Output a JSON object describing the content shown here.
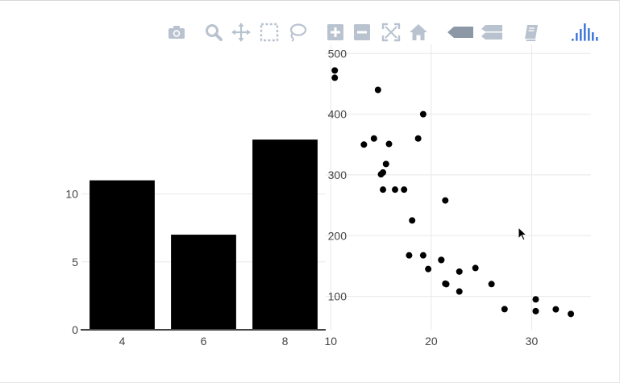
{
  "modebar": {
    "buttons": [
      {
        "icon": "camera-icon",
        "title": "Download plot as a png"
      },
      {
        "icon": "zoom-icon",
        "title": "Zoom"
      },
      {
        "icon": "pan-icon",
        "title": "Pan"
      },
      {
        "icon": "box-select-icon",
        "title": "Box Select"
      },
      {
        "icon": "lasso-select-icon",
        "title": "Lasso Select"
      },
      {
        "icon": "zoom-in-icon",
        "title": "Zoom in"
      },
      {
        "icon": "zoom-out-icon",
        "title": "Zoom out"
      },
      {
        "icon": "autoscale-icon",
        "title": "Autoscale"
      },
      {
        "icon": "home-icon",
        "title": "Reset axes"
      },
      {
        "icon": "spike-lines-icon",
        "title": "Toggle Spike Lines"
      },
      {
        "icon": "compare-hover-icon",
        "title": "Compare data on hover"
      },
      {
        "icon": "edit-chart-icon",
        "title": "Edit in Chart Studio"
      },
      {
        "icon": "plotly-logo-icon",
        "title": "Produced with Plotly"
      }
    ],
    "icon_color": "#b9c3d0",
    "logo_color": "#447adb"
  },
  "chart_data": [
    {
      "type": "bar",
      "categories": [
        "4",
        "6",
        "8"
      ],
      "values": [
        11,
        7,
        14
      ],
      "xlabel": "",
      "ylabel": "",
      "ylim": [
        0,
        14
      ],
      "yticks": [
        0,
        5,
        10
      ],
      "color": "#000000",
      "grid": true
    },
    {
      "type": "scatter",
      "xlabel": "",
      "ylabel": "",
      "xlim": [
        9.5,
        35.9
      ],
      "ylim": [
        45,
        515
      ],
      "xticks": [
        10,
        20,
        30
      ],
      "yticks": [
        100,
        200,
        300,
        400,
        500
      ],
      "color": "#000000",
      "grid": true,
      "x": [
        21,
        21,
        22.8,
        21.4,
        18.7,
        18.1,
        14.3,
        24.4,
        22.8,
        19.2,
        17.8,
        16.4,
        17.3,
        15.2,
        10.4,
        10.4,
        14.7,
        32.4,
        30.4,
        33.9,
        21.5,
        15.5,
        15.2,
        13.3,
        19.2,
        27.3,
        26,
        30.4,
        15.8,
        19.7,
        15,
        21.4
      ],
      "y": [
        160,
        160,
        108,
        258,
        360,
        225,
        360,
        146.7,
        140.8,
        167.6,
        167.6,
        275.8,
        275.8,
        275.8,
        472,
        460,
        440,
        78.7,
        75.7,
        71.1,
        120.1,
        318,
        304,
        350,
        400,
        79,
        120.3,
        95.1,
        351,
        145,
        301,
        121
      ]
    }
  ]
}
